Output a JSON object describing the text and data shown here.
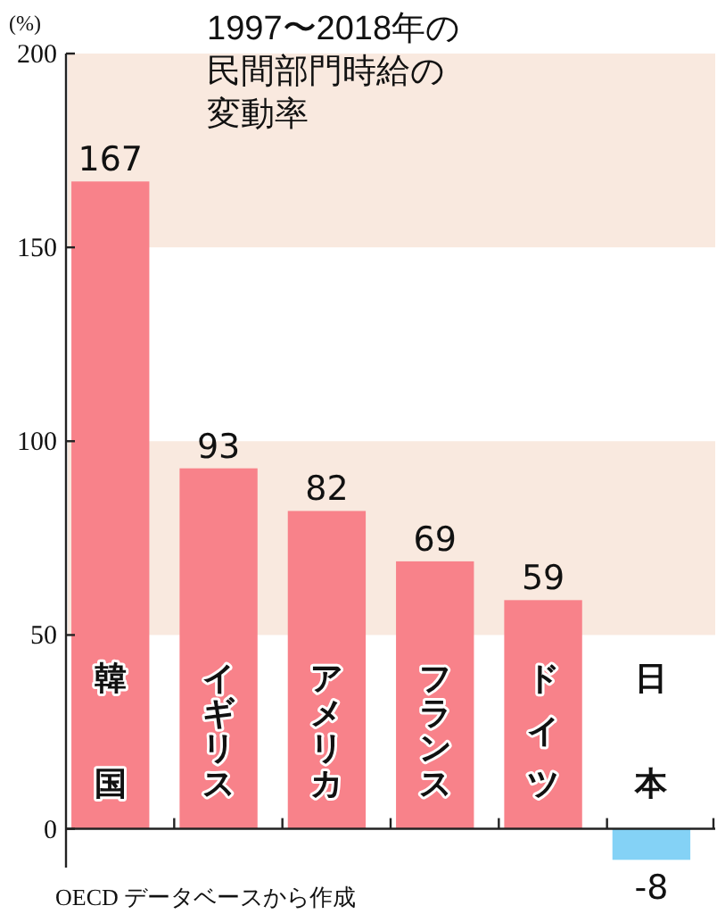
{
  "chart_data": {
    "type": "bar",
    "title": "1997〜2018年の民間部門時給の変動率",
    "ylabel": "(%)",
    "categories": [
      "韓国",
      "イギリス",
      "アメリカ",
      "フランス",
      "ドイツ",
      "日本"
    ],
    "values": [
      167,
      93,
      82,
      69,
      59,
      -8
    ],
    "colors": [
      "#f8828a",
      "#f8828a",
      "#f8828a",
      "#f8828a",
      "#f8828a",
      "#84d2f6"
    ],
    "ylim": [
      -10,
      200
    ],
    "yticks": [
      0,
      50,
      100,
      150,
      200
    ],
    "bands": [
      {
        "axis": "y",
        "from": 50,
        "to": 100,
        "color": "#f9e9df"
      },
      {
        "axis": "y",
        "from": 150,
        "to": 200,
        "color": "#f9e9df"
      }
    ],
    "data_labels": true,
    "annotations": [
      "OECD データベースから作成"
    ]
  }
}
